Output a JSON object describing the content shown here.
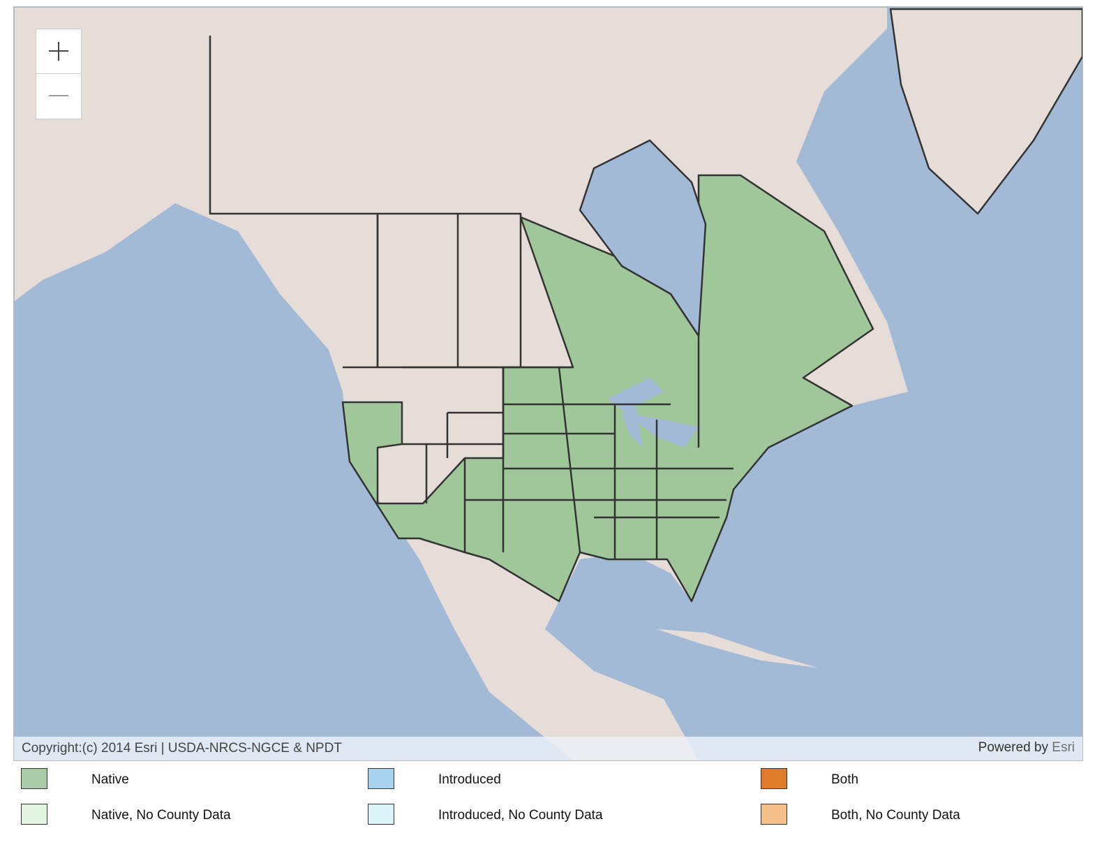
{
  "map": {
    "attribution": "Copyright:(c) 2014 Esri | USDA-NRCS-NGCE & NPDT",
    "powered_by": "Powered by",
    "powered_by_link": "Esri"
  },
  "legend": [
    {
      "label": "Native",
      "color": "#a9cba5"
    },
    {
      "label": "Introduced",
      "color": "#a8d3ef"
    },
    {
      "label": "Both",
      "color": "#e07b2a"
    },
    {
      "label": "Native, No County Data",
      "color": "#e1f5e1"
    },
    {
      "label": "Introduced, No County Data",
      "color": "#ddf3fa"
    },
    {
      "label": "Both, No County Data",
      "color": "#f5c08a"
    }
  ]
}
